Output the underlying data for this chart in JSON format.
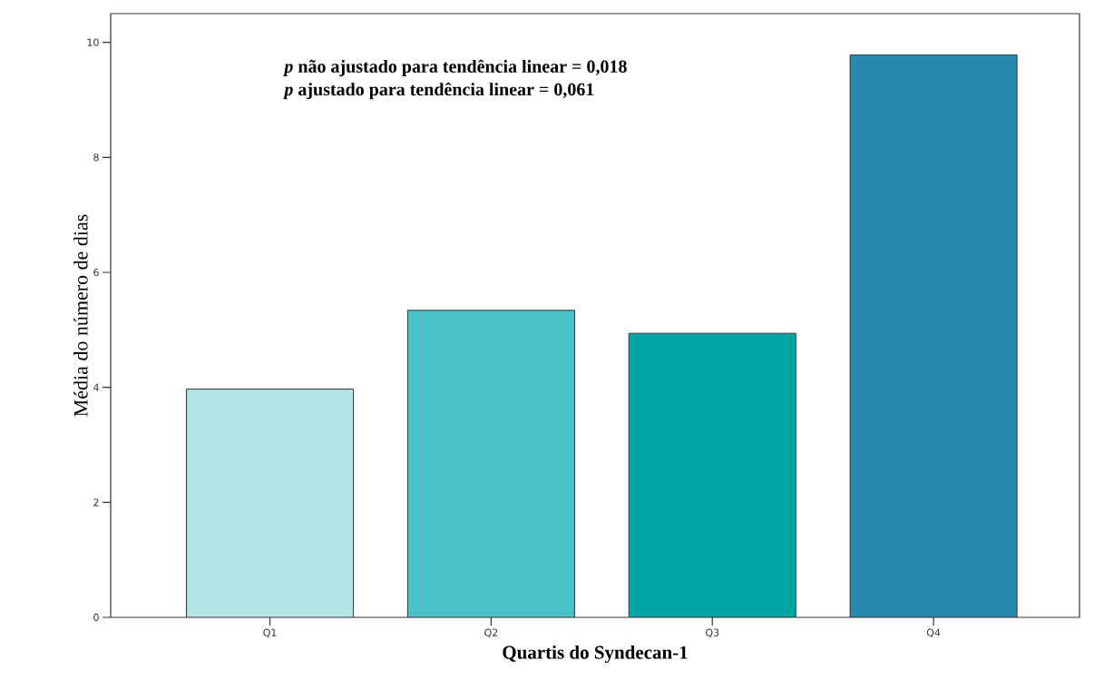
{
  "chart_data": {
    "type": "bar",
    "xlabel": "Quartis do Syndecan-1",
    "ylabel": "Média do número de dias",
    "categories": [
      "Q1",
      "Q2",
      "Q3",
      "Q4"
    ],
    "values": [
      3.97,
      5.34,
      4.94,
      9.78
    ],
    "colors": [
      "#b3e5e6",
      "#4ac1c6",
      "#00a5a6",
      "#268aad"
    ],
    "ylim": [
      0,
      10.5
    ],
    "yticks": [
      0,
      2,
      4,
      6,
      8,
      10
    ],
    "annotations": [
      "*p* não ajustado para tendência linear = 0,018",
      "*p* ajustado para tendência linear = 0,061"
    ]
  }
}
